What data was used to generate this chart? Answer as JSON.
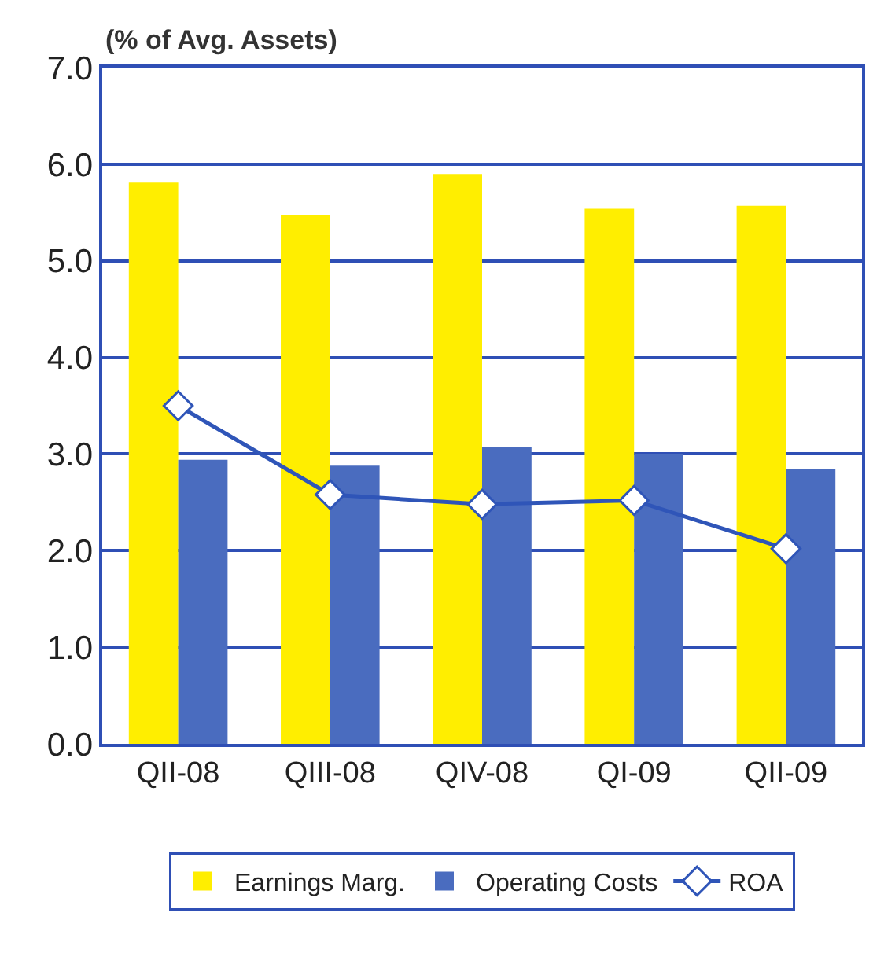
{
  "chart_data": {
    "type": "bar",
    "ylabel": "(% of Avg. Assets)",
    "categories": [
      "QII-08",
      "QIII-08",
      "QIV-08",
      "QI-09",
      "QII-09"
    ],
    "series": [
      {
        "name": "Earnings Marg.",
        "color": "#ffee00",
        "values": [
          5.81,
          5.47,
          5.9,
          5.54,
          5.57
        ]
      },
      {
        "name": "Operating Costs",
        "color": "#4a6cbf",
        "values": [
          2.94,
          2.88,
          3.07,
          3.0,
          2.84
        ]
      },
      {
        "name": "ROA",
        "type": "line",
        "color": "#2f55b8",
        "marker": "diamond",
        "values": [
          3.5,
          2.58,
          2.48,
          2.52,
          2.02
        ]
      }
    ],
    "ylim": [
      0,
      7
    ],
    "yticks": [
      {
        "value": 0,
        "label": "0.0"
      },
      {
        "value": 1,
        "label": "1.0"
      },
      {
        "value": 2,
        "label": "2.0"
      },
      {
        "value": 3,
        "label": "3.0"
      },
      {
        "value": 4,
        "label": "4.0"
      },
      {
        "value": 5,
        "label": "5.0"
      },
      {
        "value": 6,
        "label": "6.0"
      },
      {
        "value": 7,
        "label": "7.0"
      }
    ],
    "grid": "y",
    "legend": "bottom"
  }
}
